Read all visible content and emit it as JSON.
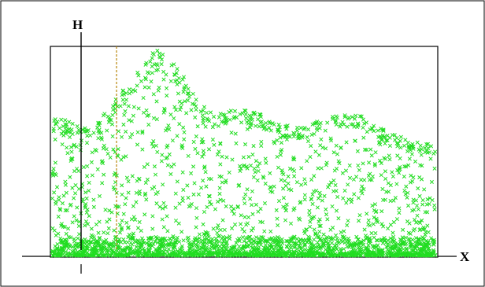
{
  "chart_data": {
    "type": "scatter",
    "title": "",
    "xlabel": "X",
    "ylabel": "H",
    "marker": "x",
    "grid": false,
    "legend": "none",
    "colors": {
      "points": "#22dd22",
      "frame": "#000000",
      "h_line": "#000000",
      "dashed_line": "#b8860b"
    },
    "series": [
      {
        "values": [],
        "envelope": [
          [
            0.0,
            0.66
          ],
          [
            0.035,
            0.65
          ],
          [
            0.08,
            0.61
          ],
          [
            0.12,
            0.64
          ],
          [
            0.16,
            0.74
          ],
          [
            0.2,
            0.83
          ],
          [
            0.24,
            0.93
          ],
          [
            0.27,
            0.99
          ],
          [
            0.305,
            0.97
          ],
          [
            0.34,
            0.87
          ],
          [
            0.38,
            0.74
          ],
          [
            0.42,
            0.68
          ],
          [
            0.46,
            0.7
          ],
          [
            0.5,
            0.7
          ],
          [
            0.54,
            0.68
          ],
          [
            0.58,
            0.65
          ],
          [
            0.62,
            0.62
          ],
          [
            0.66,
            0.62
          ],
          [
            0.7,
            0.65
          ],
          [
            0.74,
            0.67
          ],
          [
            0.78,
            0.69
          ],
          [
            0.82,
            0.66
          ],
          [
            0.86,
            0.61
          ],
          [
            0.9,
            0.58
          ],
          [
            0.93,
            0.56
          ],
          [
            0.96,
            0.55
          ],
          [
            1.0,
            0.54
          ]
        ]
      }
    ]
  }
}
